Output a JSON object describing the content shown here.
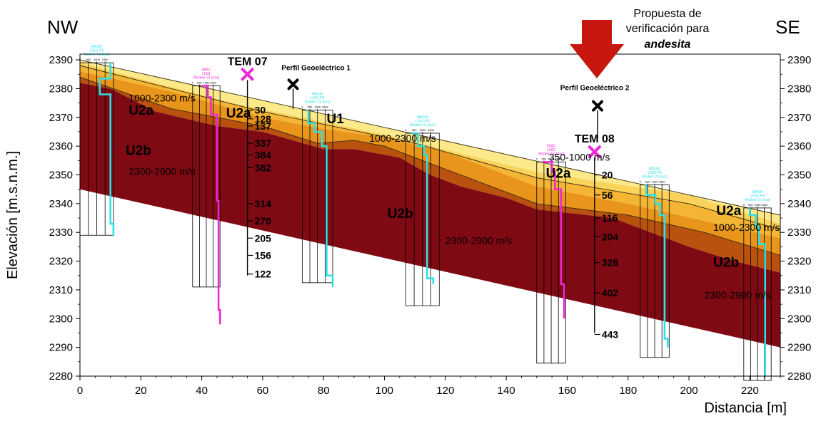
{
  "colors": {
    "u2b": "#7f0a14",
    "u2a_dark": "#b9520f",
    "u2a": "#e9951c",
    "u2a_light": "#f5b534",
    "u1": "#f9d35a",
    "top": "#fbe98a",
    "masw": "#2fe0e6",
    "spac": "#ee28d6",
    "arrow": "#c8170f"
  },
  "corners": {
    "left": "NW",
    "right": "SE"
  },
  "axes": {
    "y_label": "Elevación [m.s.n.m.]",
    "x_label": "Distancia [m]",
    "x_ticks": [
      0,
      20,
      40,
      60,
      80,
      100,
      120,
      140,
      160,
      180,
      200,
      220
    ],
    "y_ticks": [
      2280,
      2290,
      2300,
      2310,
      2320,
      2330,
      2340,
      2350,
      2360,
      2370,
      2380,
      2390
    ],
    "x_range": [
      0,
      230
    ],
    "y_range": [
      2280,
      2392
    ]
  },
  "proposal": {
    "line1": "Propuesta de",
    "line2": "verificación para",
    "line3": "andesita",
    "x": 169
  },
  "profiles": [
    {
      "label": "Perfil Geoeléctrico 1",
      "x": 70,
      "y_mark": 2381.5,
      "y_end": 2373
    },
    {
      "label": "Perfil Geoeléctrico 2",
      "x": 170,
      "y_mark": 2374,
      "y_end": 2362
    }
  ],
  "tem": [
    {
      "label": "TEM  07",
      "x": 55,
      "y_mark": 2385,
      "y_bottom": 2315,
      "levels": [
        {
          "value": "30",
          "y": 2372.5
        },
        {
          "value": "128",
          "y": 2369.5
        },
        {
          "value": "137",
          "y": 2367
        },
        {
          "value": "337",
          "y": 2361
        },
        {
          "value": "384",
          "y": 2357
        },
        {
          "value": "382",
          "y": 2352.5
        },
        {
          "value": "314",
          "y": 2340
        },
        {
          "value": "270",
          "y": 2334
        },
        {
          "value": "205",
          "y": 2328
        },
        {
          "value": "156",
          "y": 2322
        },
        {
          "value": "122",
          "y": 2315.5
        }
      ]
    },
    {
      "label": "TEM  08",
      "x": 169,
      "y_mark": 2358,
      "y_bottom": 2295,
      "levels": [
        {
          "value": "20",
          "y": 2350
        },
        {
          "value": "56",
          "y": 2343
        },
        {
          "value": "116",
          "y": 2335
        },
        {
          "value": "204",
          "y": 2328.5
        },
        {
          "value": "328",
          "y": 2319.5
        },
        {
          "value": "402",
          "y": 2309
        },
        {
          "value": "443",
          "y": 2294.5
        }
      ]
    }
  ],
  "units": [
    {
      "text": "U2a",
      "x": 16,
      "y": 2371,
      "size": 19,
      "bold": true
    },
    {
      "text": "U2a",
      "x": 48,
      "y": 2370,
      "size": 19,
      "bold": true
    },
    {
      "text": "U1",
      "x": 81,
      "y": 2368,
      "size": 19,
      "bold": true
    },
    {
      "text": "U2b",
      "x": 15,
      "y": 2357,
      "size": 19,
      "bold": true
    },
    {
      "text": "U2b",
      "x": 101,
      "y": 2335,
      "size": 19,
      "bold": true
    },
    {
      "text": "U2a",
      "x": 153,
      "y": 2349,
      "size": 19,
      "bold": true
    },
    {
      "text": "U2a",
      "x": 209,
      "y": 2336,
      "size": 19,
      "bold": true
    },
    {
      "text": "U2b",
      "x": 208,
      "y": 2318,
      "size": 19,
      "bold": true
    },
    {
      "text": "1000-2300 m/s",
      "x": 16,
      "y": 2375.5,
      "size": 14,
      "bold": false
    },
    {
      "text": "2300-2900 m/s",
      "x": 16,
      "y": 2350,
      "size": 14,
      "bold": false
    },
    {
      "text": "1000-2300 m/s",
      "x": 95,
      "y": 2361.5,
      "size": 14,
      "bold": false
    },
    {
      "text": "350-1000 m/s",
      "x": 154,
      "y": 2355,
      "size": 14,
      "bold": false
    },
    {
      "text": "2300-2900 m/s",
      "x": 120,
      "y": 2326,
      "size": 14,
      "bold": false
    },
    {
      "text": "1000-2300 m/s",
      "x": 208,
      "y": 2330.5,
      "size": 14,
      "bold": false
    },
    {
      "text": "2300-2900 m/s",
      "x": 205,
      "y": 2307,
      "size": 14,
      "bold": false
    }
  ],
  "soundings": [
    {
      "type": "MASW",
      "lines": [
        "MASW",
        "L6S1-P1",
        "Modelo Vs [m/s]"
      ],
      "x0": 0,
      "x1": 11,
      "y_top": 2389,
      "y_bottom": 2329,
      "profile": [
        [
          10,
          2389
        ],
        [
          10,
          2383.5
        ],
        [
          6.5,
          2383.5
        ],
        [
          6.5,
          2378
        ],
        [
          10,
          2378
        ],
        [
          10,
          2333
        ],
        [
          11,
          2333
        ],
        [
          11,
          2329
        ]
      ]
    },
    {
      "type": "SPAC",
      "lines": [
        "SPAC",
        "L6S1",
        "Modelo Vs [m/s]"
      ],
      "x0": 37,
      "x1": 46,
      "y_top": 2381,
      "y_bottom": 2311,
      "profile": [
        [
          40,
          2381
        ],
        [
          42,
          2381
        ],
        [
          42,
          2377
        ],
        [
          43,
          2377
        ],
        [
          43,
          2371
        ],
        [
          45,
          2371
        ],
        [
          45,
          2341
        ],
        [
          45.5,
          2341
        ],
        [
          45.5,
          2303
        ],
        [
          46,
          2303
        ],
        [
          46,
          2298
        ]
      ]
    },
    {
      "type": "MASW",
      "lines": [
        "MASW",
        "L6S1-P5",
        "Modelo Vs [m/s]"
      ],
      "x0": 73,
      "x1": 83,
      "y_top": 2372.5,
      "y_bottom": 2312.5,
      "profile": [
        [
          75,
          2372.5
        ],
        [
          75,
          2368
        ],
        [
          77,
          2368
        ],
        [
          77,
          2365
        ],
        [
          79.5,
          2365
        ],
        [
          79.5,
          2360
        ],
        [
          81,
          2360
        ],
        [
          81,
          2315
        ],
        [
          83,
          2315
        ],
        [
          83,
          2311
        ]
      ]
    },
    {
      "type": "MASW",
      "lines": [
        "MASW",
        "L6S1-P6",
        "Modelo Vs [m/s]"
      ],
      "x0": 107,
      "x1": 118,
      "y_top": 2364.5,
      "y_bottom": 2304.5,
      "profile": [
        [
          109,
          2364.5
        ],
        [
          111,
          2364.5
        ],
        [
          111,
          2360
        ],
        [
          113,
          2360
        ],
        [
          113,
          2357
        ],
        [
          114,
          2357
        ],
        [
          114,
          2314
        ],
        [
          116,
          2314
        ],
        [
          116,
          2312
        ]
      ]
    },
    {
      "type": "SPAC",
      "lines": [
        "SPAC",
        "L6S2",
        "Modelo Vs [m/s]"
      ],
      "x0": 150,
      "x1": 159.5,
      "y_top": 2354.5,
      "y_bottom": 2284.5,
      "profile": [
        [
          152,
          2354.5
        ],
        [
          155,
          2354.5
        ],
        [
          155,
          2351
        ],
        [
          156,
          2351
        ],
        [
          156,
          2345
        ],
        [
          158,
          2345
        ],
        [
          158,
          2312
        ],
        [
          159,
          2312
        ],
        [
          159,
          2300
        ]
      ]
    },
    {
      "type": "MASW",
      "lines": [
        "MASW",
        "L6S2-P5",
        "Modelo Vs [m/s]"
      ],
      "x0": 184,
      "x1": 193.5,
      "y_top": 2346.5,
      "y_bottom": 2286.5,
      "profile": [
        [
          186,
          2346.5
        ],
        [
          186,
          2343
        ],
        [
          189,
          2343
        ],
        [
          189,
          2340
        ],
        [
          190.5,
          2340
        ],
        [
          190.5,
          2336
        ],
        [
          192,
          2336
        ],
        [
          192,
          2293
        ],
        [
          193,
          2293
        ],
        [
          193,
          2290
        ]
      ]
    },
    {
      "type": "MASW",
      "lines": [
        "MASW",
        "L6S2-P9",
        "Modelo Vs [m/s]"
      ],
      "x0": 218,
      "x1": 227,
      "y_top": 2338.5,
      "y_bottom": 2278.5,
      "profile": [
        [
          220,
          2338.5
        ],
        [
          220,
          2336
        ],
        [
          222,
          2336
        ],
        [
          222,
          2332
        ],
        [
          223,
          2332
        ],
        [
          223,
          2326
        ],
        [
          225,
          2326
        ],
        [
          225,
          2280
        ]
      ]
    }
  ],
  "mini_ticks": [
    "0",
    "500",
    "1000",
    "1500"
  ],
  "layers": [
    {
      "name": "top",
      "color_key": "top",
      "upper": [
        [
          0,
          2390
        ],
        [
          230,
          2336
        ]
      ],
      "lower": [
        [
          0,
          2389
        ],
        [
          50,
          2375
        ],
        [
          100,
          2364
        ],
        [
          150,
          2351
        ],
        [
          200,
          2343
        ],
        [
          230,
          2333
        ]
      ]
    },
    {
      "name": "u1",
      "color_key": "u1",
      "upper": [
        [
          0,
          2389
        ],
        [
          50,
          2375
        ],
        [
          100,
          2364
        ],
        [
          150,
          2351
        ],
        [
          200,
          2343
        ],
        [
          230,
          2333
        ]
      ],
      "lower": [
        [
          0,
          2388
        ],
        [
          60,
          2372
        ],
        [
          110,
          2361
        ],
        [
          150,
          2349
        ],
        [
          200,
          2340
        ],
        [
          230,
          2331
        ]
      ]
    },
    {
      "name": "u2a_light",
      "color_key": "u2a_light",
      "upper": [
        [
          0,
          2388
        ],
        [
          60,
          2372
        ],
        [
          110,
          2361
        ],
        [
          150,
          2349
        ],
        [
          200,
          2340
        ],
        [
          230,
          2331
        ]
      ],
      "lower": [
        [
          0,
          2386
        ],
        [
          30,
          2379
        ],
        [
          60,
          2370
        ],
        [
          80,
          2366
        ],
        [
          100,
          2363
        ],
        [
          120,
          2358
        ],
        [
          150,
          2346
        ],
        [
          180,
          2340
        ],
        [
          205,
          2334
        ],
        [
          230,
          2328
        ]
      ]
    },
    {
      "name": "u2a",
      "color_key": "u2a",
      "upper": [
        [
          0,
          2386
        ],
        [
          30,
          2379
        ],
        [
          60,
          2370
        ],
        [
          80,
          2366
        ],
        [
          100,
          2363
        ],
        [
          120,
          2358
        ],
        [
          150,
          2346
        ],
        [
          180,
          2340
        ],
        [
          205,
          2334
        ],
        [
          230,
          2328
        ]
      ],
      "lower": [
        [
          0,
          2384
        ],
        [
          30,
          2373
        ],
        [
          60,
          2367
        ],
        [
          78,
          2361
        ],
        [
          90,
          2362
        ],
        [
          100,
          2360
        ],
        [
          110,
          2356
        ],
        [
          130,
          2348
        ],
        [
          150,
          2340
        ],
        [
          180,
          2336
        ],
        [
          205,
          2330
        ],
        [
          230,
          2322
        ]
      ]
    },
    {
      "name": "u2a_dark",
      "color_key": "u2a_dark",
      "upper": [
        [
          0,
          2384
        ],
        [
          30,
          2373
        ],
        [
          60,
          2367
        ],
        [
          78,
          2361
        ],
        [
          90,
          2362
        ],
        [
          100,
          2360
        ],
        [
          110,
          2356
        ],
        [
          130,
          2348
        ],
        [
          150,
          2340
        ],
        [
          180,
          2336
        ],
        [
          205,
          2330
        ],
        [
          230,
          2322
        ]
      ],
      "lower": [
        [
          0,
          2382
        ],
        [
          10,
          2380
        ],
        [
          25,
          2372
        ],
        [
          45,
          2367
        ],
        [
          60,
          2365
        ],
        [
          80,
          2359
        ],
        [
          90,
          2359
        ],
        [
          105,
          2356
        ],
        [
          115,
          2350
        ],
        [
          125,
          2346
        ],
        [
          140,
          2342
        ],
        [
          150,
          2338
        ],
        [
          175,
          2335
        ],
        [
          200,
          2325
        ],
        [
          215,
          2320
        ],
        [
          230,
          2316
        ]
      ]
    },
    {
      "name": "u2b",
      "color_key": "u2b",
      "upper": [
        [
          0,
          2382
        ],
        [
          10,
          2380
        ],
        [
          25,
          2372
        ],
        [
          45,
          2367
        ],
        [
          60,
          2365
        ],
        [
          80,
          2359
        ],
        [
          90,
          2359
        ],
        [
          105,
          2356
        ],
        [
          115,
          2350
        ],
        [
          125,
          2346
        ],
        [
          140,
          2342
        ],
        [
          150,
          2338
        ],
        [
          175,
          2335
        ],
        [
          200,
          2325
        ],
        [
          215,
          2320
        ],
        [
          230,
          2316
        ]
      ],
      "lower": [
        [
          0,
          2345
        ],
        [
          230,
          2290
        ]
      ]
    }
  ],
  "boundaries": [
    [
      [
        0,
        2390
      ],
      [
        230,
        2336
      ]
    ],
    [
      [
        0,
        2388
      ],
      [
        60,
        2372
      ],
      [
        110,
        2361
      ],
      [
        150,
        2349
      ],
      [
        200,
        2340
      ],
      [
        230,
        2331
      ]
    ],
    [
      [
        0,
        2384
      ],
      [
        30,
        2373
      ],
      [
        60,
        2367
      ],
      [
        78,
        2361
      ],
      [
        90,
        2362
      ],
      [
        100,
        2360
      ],
      [
        110,
        2356
      ],
      [
        130,
        2348
      ],
      [
        150,
        2340
      ],
      [
        180,
        2336
      ],
      [
        205,
        2330
      ],
      [
        230,
        2322
      ]
    ]
  ]
}
